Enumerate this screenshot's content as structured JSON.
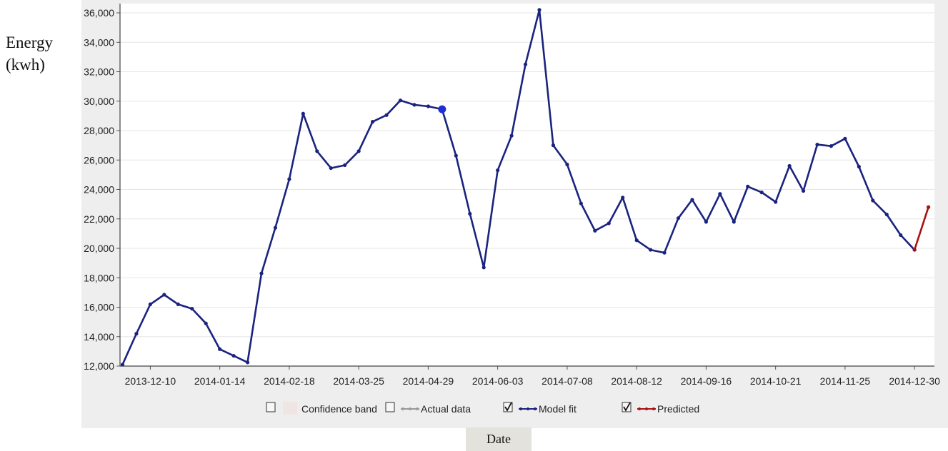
{
  "chart_data": {
    "type": "line",
    "xlabel": "Date",
    "ylabel": "Energy\n(kwh)",
    "ylim": [
      12000,
      36000
    ],
    "yticks": [
      "12,000",
      "14,000",
      "16,000",
      "18,000",
      "20,000",
      "22,000",
      "24,000",
      "26,000",
      "28,000",
      "30,000",
      "32,000",
      "34,000",
      "36,000"
    ],
    "xticks": [
      "2013-12-10",
      "2014-01-14",
      "2014-02-18",
      "2014-03-25",
      "2014-04-29",
      "2014-06-03",
      "2014-07-08",
      "2014-08-12",
      "2014-09-16",
      "2014-10-21",
      "2014-11-25",
      "2014-12-30"
    ],
    "grid": true,
    "legend": [
      {
        "label": "Confidence band",
        "checked": false
      },
      {
        "label": "Actual data",
        "checked": false
      },
      {
        "label": "Model fit",
        "checked": true
      },
      {
        "label": "Predicted",
        "checked": true
      }
    ],
    "series": [
      {
        "name": "Model fit",
        "color": "#1a237e",
        "values": [
          12100,
          14200,
          16200,
          16850,
          16200,
          15900,
          14900,
          13150,
          12700,
          12250,
          18300,
          21400,
          24700,
          29150,
          26600,
          25450,
          25650,
          26600,
          28600,
          29050,
          30050,
          29750,
          29650,
          29450,
          26300,
          22350,
          18700,
          25300,
          27650,
          32500,
          36200,
          27000,
          25700,
          23050,
          21200,
          21700,
          23450,
          20550,
          19900,
          19700,
          22050,
          23300,
          21800,
          23700,
          21800,
          24200,
          23800,
          23150,
          25600,
          23900,
          27050,
          26950,
          27450,
          25550,
          23250,
          22300,
          20900,
          19900
        ]
      },
      {
        "name": "Predicted",
        "color": "#aa1111",
        "start_index": 57,
        "values": [
          19900,
          22800
        ]
      }
    ],
    "highlight_index": 23
  }
}
